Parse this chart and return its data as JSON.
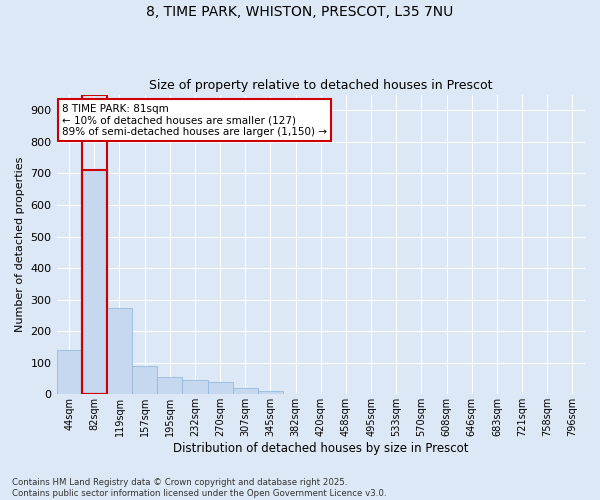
{
  "title_line1": "8, TIME PARK, WHISTON, PRESCOT, L35 7NU",
  "title_line2": "Size of property relative to detached houses in Prescot",
  "xlabel": "Distribution of detached houses by size in Prescot",
  "ylabel": "Number of detached properties",
  "categories": [
    "44sqm",
    "82sqm",
    "119sqm",
    "157sqm",
    "195sqm",
    "232sqm",
    "270sqm",
    "307sqm",
    "345sqm",
    "382sqm",
    "420sqm",
    "458sqm",
    "495sqm",
    "533sqm",
    "570sqm",
    "608sqm",
    "646sqm",
    "683sqm",
    "721sqm",
    "758sqm",
    "796sqm"
  ],
  "values": [
    140,
    710,
    275,
    90,
    55,
    45,
    38,
    20,
    10,
    0,
    0,
    0,
    0,
    0,
    0,
    0,
    0,
    0,
    0,
    0,
    0
  ],
  "bar_color": "#c5d8f0",
  "bar_edge_color": "#8ab4d8",
  "highlight_bar_index": 1,
  "highlight_bar_edge_color": "#cc0000",
  "annotation_box_text": "8 TIME PARK: 81sqm\n← 10% of detached houses are smaller (127)\n89% of semi-detached houses are larger (1,150) →",
  "annotation_box_facecolor": "#ffffff",
  "annotation_box_edge_color": "#cc0000",
  "ylim": [
    0,
    950
  ],
  "yticks": [
    0,
    100,
    200,
    300,
    400,
    500,
    600,
    700,
    800,
    900
  ],
  "background_color": "#dce8f5",
  "grid_color": "#ffffff",
  "footnote": "Contains HM Land Registry data © Crown copyright and database right 2025.\nContains public sector information licensed under the Open Government Licence v3.0."
}
